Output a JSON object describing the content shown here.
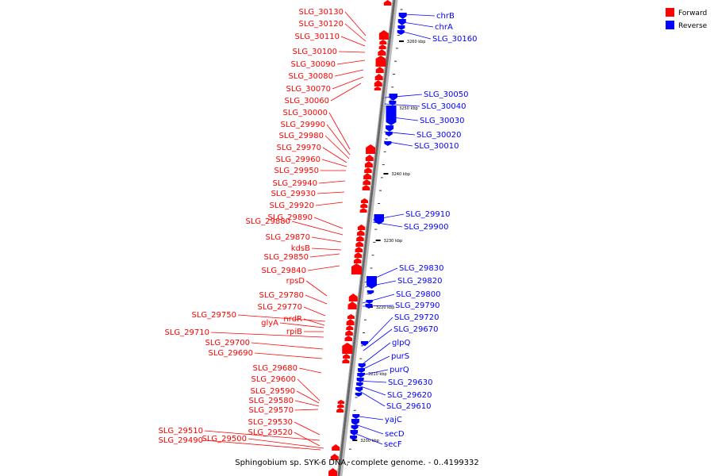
{
  "legend": {
    "forward": {
      "label": "Forward",
      "color": "#ff0000"
    },
    "reverse": {
      "label": "Reverse",
      "color": "#0000ff"
    }
  },
  "caption": "Sphingobium sp. SYK-6 DNA, complete genome. - 0..4199332",
  "tick_labels": [
    "3260 kbp",
    "3250 kbp",
    "3240 kbp",
    "3230 kbp",
    "3220 kbp",
    "3210 kbp",
    "3200 kbp"
  ],
  "forward_genes": [
    "SLG_30130",
    "SLG_30120",
    "SLG_30110",
    "SLG_30100",
    "SLG_30090",
    "SLG_30080",
    "SLG_30070",
    "SLG_30060",
    "SLG_30000",
    "SLG_29990",
    "SLG_29980",
    "SLG_29970",
    "SLG_29960",
    "SLG_29950",
    "SLG_29940",
    "SLG_29930",
    "SLG_29920",
    "SLG_29890",
    "SLG_29880",
    "SLG_29870",
    "kdsB",
    "SLG_29850",
    "SLG_29840",
    "rpsD",
    "SLG_29780",
    "SLG_29770",
    "SLG_29750",
    "nrdR",
    "glyA",
    "rpiB",
    "SLG_29710",
    "SLG_29700",
    "SLG_29690",
    "SLG_29680",
    "SLG_29600",
    "SLG_29590",
    "SLG_29580",
    "SLG_29570",
    "SLG_29510",
    "SLG_29520",
    "SLG_29530",
    "SLG_29500",
    "SLG_29490"
  ],
  "reverse_genes": [
    "chrB",
    "chrA",
    "SLG_30160",
    "SLG_30050",
    "SLG_30040",
    "SLG_30030",
    "SLG_30020",
    "SLG_30010",
    "SLG_29910",
    "SLG_29900",
    "SLG_29830",
    "SLG_29820",
    "SLG_29800",
    "SLG_29790",
    "SLG_29720",
    "SLG_29670",
    "glpQ",
    "purS",
    "purQ",
    "SLG_29630",
    "SLG_29620",
    "SLG_29610",
    "yajC",
    "secD",
    "secF"
  ]
}
